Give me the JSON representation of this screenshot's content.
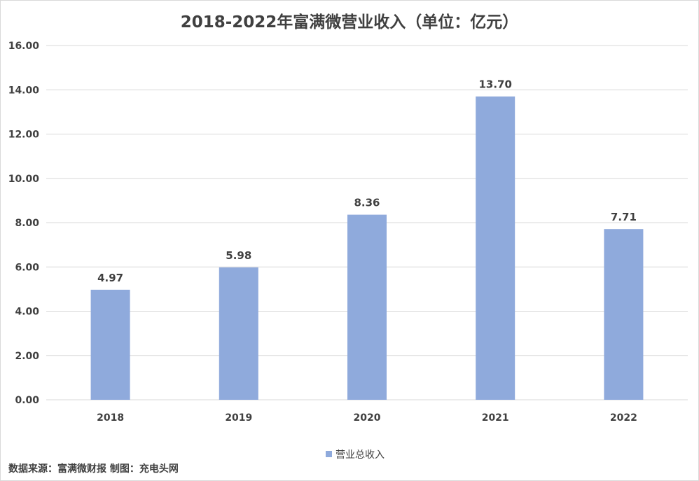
{
  "page": {
    "title": "2018-2022年富满微营业收入（单位：亿元）",
    "source": "数据来源：富满微财报  制图：充电头网"
  },
  "chart_data": {
    "type": "bar",
    "title": "2018-2022年富满微营业收入（单位：亿元）",
    "categories": [
      "2018",
      "2019",
      "2020",
      "2021",
      "2022"
    ],
    "series": [
      {
        "name": "营业总收入",
        "values": [
          4.97,
          5.98,
          8.36,
          13.7,
          7.71
        ],
        "value_labels": [
          "4.97",
          "5.98",
          "8.36",
          "13.70",
          "7.71"
        ]
      }
    ],
    "y_ticks": [
      "0.00",
      "2.00",
      "4.00",
      "6.00",
      "8.00",
      "10.00",
      "12.00",
      "14.00",
      "16.00"
    ],
    "ylim": [
      0,
      16
    ],
    "grid": true,
    "legend_position": "bottom",
    "colors": {
      "bar": "#8faadc",
      "grid": "#d9d9d9",
      "text": "#404040"
    }
  }
}
